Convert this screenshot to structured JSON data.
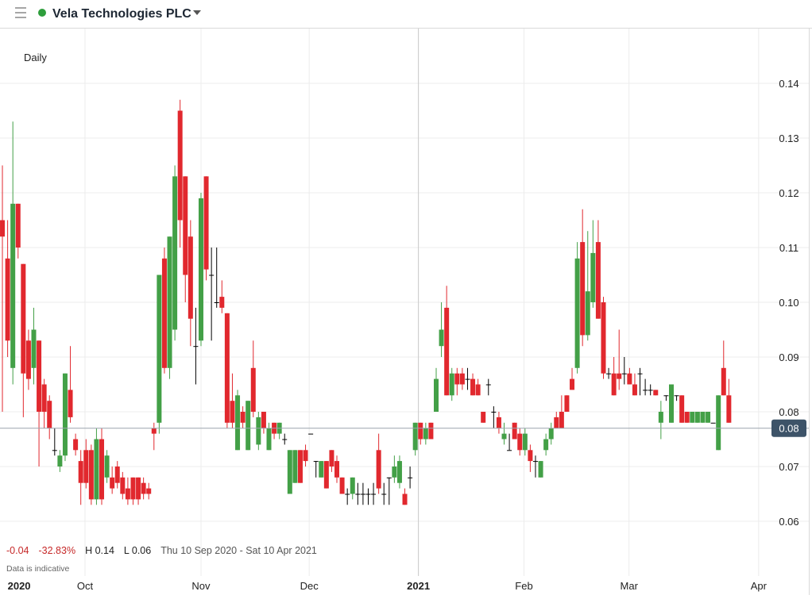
{
  "header": {
    "title": "Vela Technologies PLC"
  },
  "chart_data": {
    "type": "candlestick",
    "interval_label": "Daily",
    "stats": [
      "-0.04",
      "-32.83%",
      "H 0.14",
      "L 0.06",
      "Thu 10 Sep 2020 - Sat 10 Apr 2021"
    ],
    "note": "Data is indicative",
    "up_color": "#43a047",
    "down_color": "#e1282e",
    "flat_color": "#000000",
    "ylim": [
      0.05,
      0.15
    ],
    "yticks": [
      0.06,
      0.07,
      0.08,
      0.09,
      {
        "value": 0.1,
        "label": "0.10"
      },
      0.11,
      0.12,
      0.13,
      0.14
    ],
    "xlim": [
      -0.46,
      154.3
    ],
    "xticks": [
      {
        "value": 3.2,
        "label": "2020"
      },
      {
        "value": 15.8,
        "label": "Oct"
      },
      {
        "value": 38,
        "label": "Nov"
      },
      {
        "value": 58.7,
        "label": "Dec"
      },
      {
        "value": 79.6,
        "label": "2021"
      },
      {
        "value": 99.8,
        "label": "Feb"
      },
      {
        "value": 119.9,
        "label": "Mar"
      },
      {
        "value": 144.7,
        "label": "Apr"
      }
    ],
    "grid": true,
    "last_price": {
      "value": 0.077,
      "label": "0.08"
    },
    "open": [
      0.115,
      0.108,
      0.088,
      0.118,
      0.107,
      0.093,
      0.088,
      0.093,
      0.085,
      0.082,
      0.073,
      0.07,
      0.072,
      0.084,
      0.075,
      0.071,
      0.073,
      0.073,
      0.064,
      0.075,
      0.068,
      0.068,
      0.07,
      0.068,
      0.066,
      0.068,
      0.068,
      0.067,
      0.066,
      0.077,
      0.078,
      0.108,
      0.088,
      0.095,
      0.135,
      0.123,
      0.112,
      0.092,
      0.093,
      0.123,
      0.105,
      0.1,
      0.101,
      0.098,
      0.082,
      0.073,
      0.08,
      0.073,
      0.088,
      0.074,
      0.08,
      0.073,
      0.078,
      0.076,
      0.075,
      0.065,
      0.067,
      0.073,
      0.073,
      0.076,
      0.071,
      0.068,
      0.071,
      0.073,
      0.071,
      0.068,
      0.065,
      0.065,
      0.065,
      0.065,
      0.065,
      0.065,
      0.073,
      0.065,
      0.068,
      0.068,
      0.067,
      0.065,
      0.068,
      0.073,
      0.078,
      0.075,
      0.078,
      0.08,
      0.092,
      0.099,
      0.083,
      0.087,
      0.087,
      0.086,
      0.086,
      0.085,
      0.08,
      0.085,
      0.08,
      0.079,
      0.075,
      0.073,
      0.078,
      0.076,
      0.073,
      0.073,
      0.071,
      0.068,
      0.073,
      0.075,
      0.079,
      0.08,
      0.083,
      0.086,
      0.088,
      0.111,
      0.094,
      0.1,
      0.111,
      0.1,
      0.087,
      0.087,
      0.087,
      0.087,
      0.087,
      0.085,
      0.087,
      0.084,
      0.084,
      0.084,
      0.078,
      0.083,
      0.078,
      0.083,
      0.083,
      0.08,
      0.078,
      0.078,
      0.078,
      0.078,
      0.078,
      0.073,
      0.088,
      0.083
    ],
    "high": [
      0.125,
      0.115,
      0.133,
      0.118,
      0.107,
      0.095,
      0.099,
      0.093,
      0.086,
      0.083,
      0.077,
      0.073,
      0.087,
      0.092,
      0.076,
      0.073,
      0.075,
      0.074,
      0.077,
      0.077,
      0.073,
      0.07,
      0.071,
      0.069,
      0.068,
      0.068,
      0.068,
      0.068,
      0.067,
      0.078,
      0.105,
      0.11,
      0.112,
      0.125,
      0.137,
      0.123,
      0.115,
      0.099,
      0.12,
      0.123,
      0.11,
      0.11,
      0.104,
      0.098,
      0.087,
      0.084,
      0.081,
      0.082,
      0.093,
      0.08,
      0.08,
      0.078,
      0.078,
      0.078,
      0.076,
      0.073,
      0.073,
      0.073,
      0.074,
      0.076,
      0.071,
      0.071,
      0.071,
      0.073,
      0.072,
      0.068,
      0.066,
      0.068,
      0.067,
      0.067,
      0.066,
      0.067,
      0.076,
      0.067,
      0.068,
      0.072,
      0.072,
      0.066,
      0.07,
      0.078,
      0.078,
      0.078,
      0.078,
      0.088,
      0.1,
      0.103,
      0.088,
      0.088,
      0.088,
      0.088,
      0.087,
      0.086,
      0.08,
      0.086,
      0.081,
      0.08,
      0.078,
      0.076,
      0.078,
      0.077,
      0.077,
      0.074,
      0.072,
      0.071,
      0.076,
      0.078,
      0.08,
      0.083,
      0.083,
      0.088,
      0.111,
      0.117,
      0.113,
      0.115,
      0.115,
      0.101,
      0.088,
      0.09,
      0.095,
      0.09,
      0.088,
      0.087,
      0.088,
      0.086,
      0.085,
      0.084,
      0.082,
      0.083,
      0.085,
      0.083,
      0.083,
      0.08,
      0.08,
      0.08,
      0.08,
      0.08,
      0.078,
      0.083,
      0.093,
      0.086
    ],
    "low": [
      0.08,
      0.09,
      0.085,
      0.108,
      0.079,
      0.084,
      0.085,
      0.07,
      0.077,
      0.075,
      0.072,
      0.069,
      0.071,
      0.078,
      0.072,
      0.063,
      0.066,
      0.063,
      0.063,
      0.063,
      0.067,
      0.065,
      0.066,
      0.064,
      0.063,
      0.063,
      0.063,
      0.064,
      0.064,
      0.073,
      0.076,
      0.087,
      0.086,
      0.093,
      0.11,
      0.1,
      0.092,
      0.085,
      0.092,
      0.104,
      0.093,
      0.099,
      0.098,
      0.077,
      0.077,
      0.073,
      0.077,
      0.073,
      0.079,
      0.073,
      0.076,
      0.073,
      0.075,
      0.075,
      0.074,
      0.065,
      0.067,
      0.067,
      0.07,
      0.076,
      0.068,
      0.068,
      0.066,
      0.069,
      0.067,
      0.065,
      0.063,
      0.064,
      0.063,
      0.063,
      0.063,
      0.063,
      0.065,
      0.063,
      0.063,
      0.067,
      0.066,
      0.063,
      0.066,
      0.072,
      0.074,
      0.074,
      0.075,
      0.08,
      0.09,
      0.083,
      0.082,
      0.083,
      0.084,
      0.084,
      0.083,
      0.083,
      0.078,
      0.083,
      0.077,
      0.076,
      0.074,
      0.073,
      0.075,
      0.072,
      0.072,
      0.069,
      0.068,
      0.068,
      0.072,
      0.074,
      0.077,
      0.077,
      0.08,
      0.084,
      0.087,
      0.092,
      0.093,
      0.099,
      0.097,
      0.086,
      0.086,
      0.083,
      0.084,
      0.085,
      0.085,
      0.083,
      0.083,
      0.083,
      0.083,
      0.083,
      0.075,
      0.082,
      0.078,
      0.082,
      0.078,
      0.078,
      0.078,
      0.078,
      0.078,
      0.078,
      0.078,
      0.073,
      0.083,
      0.078
    ],
    "close": [
      0.112,
      0.093,
      0.118,
      0.11,
      0.087,
      0.086,
      0.095,
      0.08,
      0.08,
      0.077,
      0.073,
      0.072,
      0.087,
      0.079,
      0.073,
      0.067,
      0.067,
      0.064,
      0.075,
      0.064,
      0.072,
      0.066,
      0.067,
      0.065,
      0.064,
      0.064,
      0.064,
      0.065,
      0.065,
      0.076,
      0.105,
      0.088,
      0.112,
      0.123,
      0.115,
      0.105,
      0.097,
      0.092,
      0.119,
      0.106,
      0.105,
      0.1,
      0.099,
      0.078,
      0.078,
      0.083,
      0.078,
      0.082,
      0.08,
      0.079,
      0.077,
      0.077,
      0.076,
      0.078,
      0.075,
      0.073,
      0.073,
      0.067,
      0.071,
      0.076,
      0.071,
      0.071,
      0.066,
      0.07,
      0.068,
      0.065,
      0.065,
      0.068,
      0.065,
      0.065,
      0.065,
      0.065,
      0.066,
      0.065,
      0.068,
      0.07,
      0.071,
      0.063,
      0.068,
      0.078,
      0.075,
      0.077,
      0.075,
      0.086,
      0.095,
      0.083,
      0.087,
      0.085,
      0.085,
      0.086,
      0.083,
      0.083,
      0.078,
      0.085,
      0.08,
      0.077,
      0.076,
      0.073,
      0.075,
      0.073,
      0.076,
      0.071,
      0.071,
      0.071,
      0.075,
      0.077,
      0.077,
      0.077,
      0.08,
      0.084,
      0.108,
      0.094,
      0.102,
      0.109,
      0.097,
      0.087,
      0.087,
      0.083,
      0.086,
      0.087,
      0.085,
      0.083,
      0.087,
      0.084,
      0.084,
      0.083,
      0.08,
      0.083,
      0.085,
      0.083,
      0.078,
      0.078,
      0.08,
      0.08,
      0.08,
      0.08,
      0.078,
      0.083,
      0.083,
      0.078
    ]
  }
}
